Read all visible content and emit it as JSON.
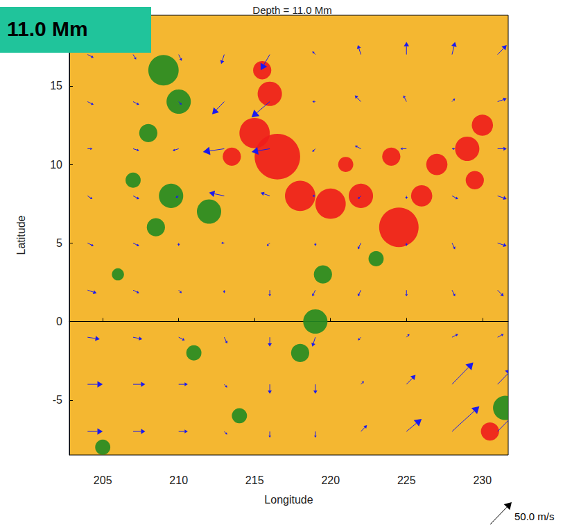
{
  "chart_data": {
    "type": "quiver",
    "title": "Depth = 11.0 Mm",
    "annotation": "11.0 Mm",
    "x_label": "Longitude",
    "y_label": "Latitude",
    "xlim": [
      202.8,
      231.7
    ],
    "ylim": [
      -8.5,
      19.5
    ],
    "xticks": [
      205,
      210,
      215,
      220,
      225,
      230
    ],
    "yticks": [
      -5,
      0,
      5,
      10,
      15
    ],
    "grid": false,
    "color": "#1a1aee",
    "scale_arrow": {
      "value": 50,
      "label": "50.0 m/s"
    },
    "vectors": [
      [
        204,
        17,
        10,
        -5
      ],
      [
        207,
        17,
        5,
        -8
      ],
      [
        210,
        17,
        5,
        -10
      ],
      [
        213,
        17,
        -5,
        -15
      ],
      [
        216,
        17,
        -15,
        -25
      ],
      [
        219,
        17,
        -5,
        5
      ],
      [
        222,
        17,
        -5,
        15
      ],
      [
        225,
        17,
        0,
        20
      ],
      [
        228,
        17,
        5,
        20
      ],
      [
        231,
        17,
        15,
        15
      ],
      [
        204,
        14,
        10,
        -5
      ],
      [
        207,
        14,
        10,
        -5
      ],
      [
        210,
        14,
        5,
        -5
      ],
      [
        213,
        14,
        -20,
        -20
      ],
      [
        216,
        14,
        -30,
        -25
      ],
      [
        219,
        14,
        -5,
        0
      ],
      [
        222,
        14,
        -10,
        10
      ],
      [
        225,
        14,
        -5,
        10
      ],
      [
        228,
        14,
        5,
        5
      ],
      [
        231,
        14,
        15,
        5
      ],
      [
        204,
        11,
        8,
        0
      ],
      [
        207,
        11,
        10,
        -3
      ],
      [
        210,
        11,
        -10,
        -3
      ],
      [
        213,
        11,
        -35,
        -5
      ],
      [
        216,
        11,
        -30,
        -5
      ],
      [
        219,
        11,
        -5,
        -5
      ],
      [
        222,
        11,
        -10,
        5
      ],
      [
        225,
        11,
        -10,
        0
      ],
      [
        228,
        11,
        5,
        0
      ],
      [
        231,
        11,
        15,
        0
      ],
      [
        204,
        8,
        8,
        -5
      ],
      [
        207,
        8,
        10,
        -5
      ],
      [
        210,
        8,
        -5,
        -3
      ],
      [
        213,
        8,
        -25,
        5
      ],
      [
        216,
        8,
        -15,
        5
      ],
      [
        219,
        8,
        -5,
        0
      ],
      [
        222,
        8,
        -5,
        -5
      ],
      [
        225,
        8,
        0,
        -5
      ],
      [
        228,
        8,
        10,
        -5
      ],
      [
        231,
        8,
        15,
        -5
      ],
      [
        204,
        5,
        10,
        -5
      ],
      [
        207,
        5,
        10,
        -5
      ],
      [
        210,
        5,
        0,
        -5
      ],
      [
        213,
        5,
        -5,
        0
      ],
      [
        216,
        5,
        -5,
        -5
      ],
      [
        219,
        5,
        0,
        -5
      ],
      [
        222,
        5,
        -5,
        -10
      ],
      [
        225,
        5,
        0,
        -5
      ],
      [
        228,
        5,
        5,
        -10
      ],
      [
        231,
        5,
        15,
        -5
      ],
      [
        204,
        2,
        15,
        -5
      ],
      [
        207,
        2,
        10,
        -5
      ],
      [
        210,
        2,
        5,
        -5
      ],
      [
        213,
        2,
        0,
        -5
      ],
      [
        216,
        2,
        0,
        -10
      ],
      [
        219,
        2,
        -5,
        -10
      ],
      [
        222,
        2,
        -5,
        -10
      ],
      [
        225,
        2,
        0,
        -10
      ],
      [
        228,
        2,
        5,
        -10
      ],
      [
        231,
        2,
        10,
        -10
      ],
      [
        204,
        -1,
        20,
        -3
      ],
      [
        207,
        -1,
        15,
        -3
      ],
      [
        210,
        -1,
        10,
        -5
      ],
      [
        213,
        -1,
        5,
        -10
      ],
      [
        216,
        -1,
        0,
        -15
      ],
      [
        219,
        -1,
        -5,
        -15
      ],
      [
        222,
        -1,
        -5,
        -5
      ],
      [
        225,
        -1,
        5,
        5
      ],
      [
        228,
        -1,
        10,
        5
      ],
      [
        231,
        -1,
        10,
        5
      ],
      [
        204,
        -4,
        25,
        0
      ],
      [
        207,
        -4,
        20,
        0
      ],
      [
        210,
        -4,
        15,
        0
      ],
      [
        213,
        -4,
        5,
        -5
      ],
      [
        216,
        -4,
        0,
        -15
      ],
      [
        219,
        -4,
        0,
        -15
      ],
      [
        222,
        -4,
        5,
        5
      ],
      [
        225,
        -4,
        15,
        15
      ],
      [
        228,
        -4,
        35,
        35
      ],
      [
        231,
        -4,
        25,
        25
      ],
      [
        204,
        -7,
        25,
        0
      ],
      [
        207,
        -7,
        20,
        0
      ],
      [
        210,
        -7,
        15,
        0
      ],
      [
        213,
        -7,
        5,
        -5
      ],
      [
        216,
        -7,
        0,
        -10
      ],
      [
        219,
        -7,
        0,
        -10
      ],
      [
        222,
        -7,
        10,
        10
      ],
      [
        225,
        -7,
        25,
        20
      ],
      [
        228,
        -7,
        45,
        40
      ],
      [
        231,
        -7,
        30,
        30
      ]
    ],
    "field_patches": [
      {
        "color": "#ee1c1c",
        "points": [
          [
            216.5,
            10.5,
            1.5
          ],
          [
            215,
            12,
            1
          ],
          [
            216,
            14.5,
            0.8
          ],
          [
            215.5,
            16,
            0.6
          ],
          [
            218,
            8,
            1
          ],
          [
            220,
            7.5,
            1
          ],
          [
            222,
            8,
            0.8
          ],
          [
            224.5,
            6,
            1.3
          ],
          [
            226,
            8,
            0.7
          ],
          [
            227,
            10,
            0.7
          ],
          [
            229,
            11,
            0.8
          ],
          [
            230,
            12.5,
            0.7
          ],
          [
            229.5,
            9,
            0.6
          ],
          [
            224,
            10.5,
            0.6
          ],
          [
            213.5,
            10.5,
            0.6
          ],
          [
            221,
            10,
            0.5
          ],
          [
            230.5,
            -7,
            0.6
          ]
        ]
      },
      {
        "color": "#228b22",
        "points": [
          [
            209,
            16,
            1
          ],
          [
            210,
            14,
            0.8
          ],
          [
            208,
            12,
            0.6
          ],
          [
            209.5,
            8,
            0.8
          ],
          [
            208.5,
            6,
            0.6
          ],
          [
            212,
            7,
            0.8
          ],
          [
            207,
            9,
            0.5
          ],
          [
            219,
            0,
            0.8
          ],
          [
            219.5,
            3,
            0.6
          ],
          [
            218,
            -2,
            0.6
          ],
          [
            223,
            4,
            0.5
          ],
          [
            231.5,
            -5.5,
            0.8
          ],
          [
            211,
            -2,
            0.5
          ],
          [
            205,
            -8,
            0.5
          ],
          [
            214,
            -6,
            0.5
          ],
          [
            206,
            3,
            0.4
          ]
        ]
      }
    ]
  }
}
